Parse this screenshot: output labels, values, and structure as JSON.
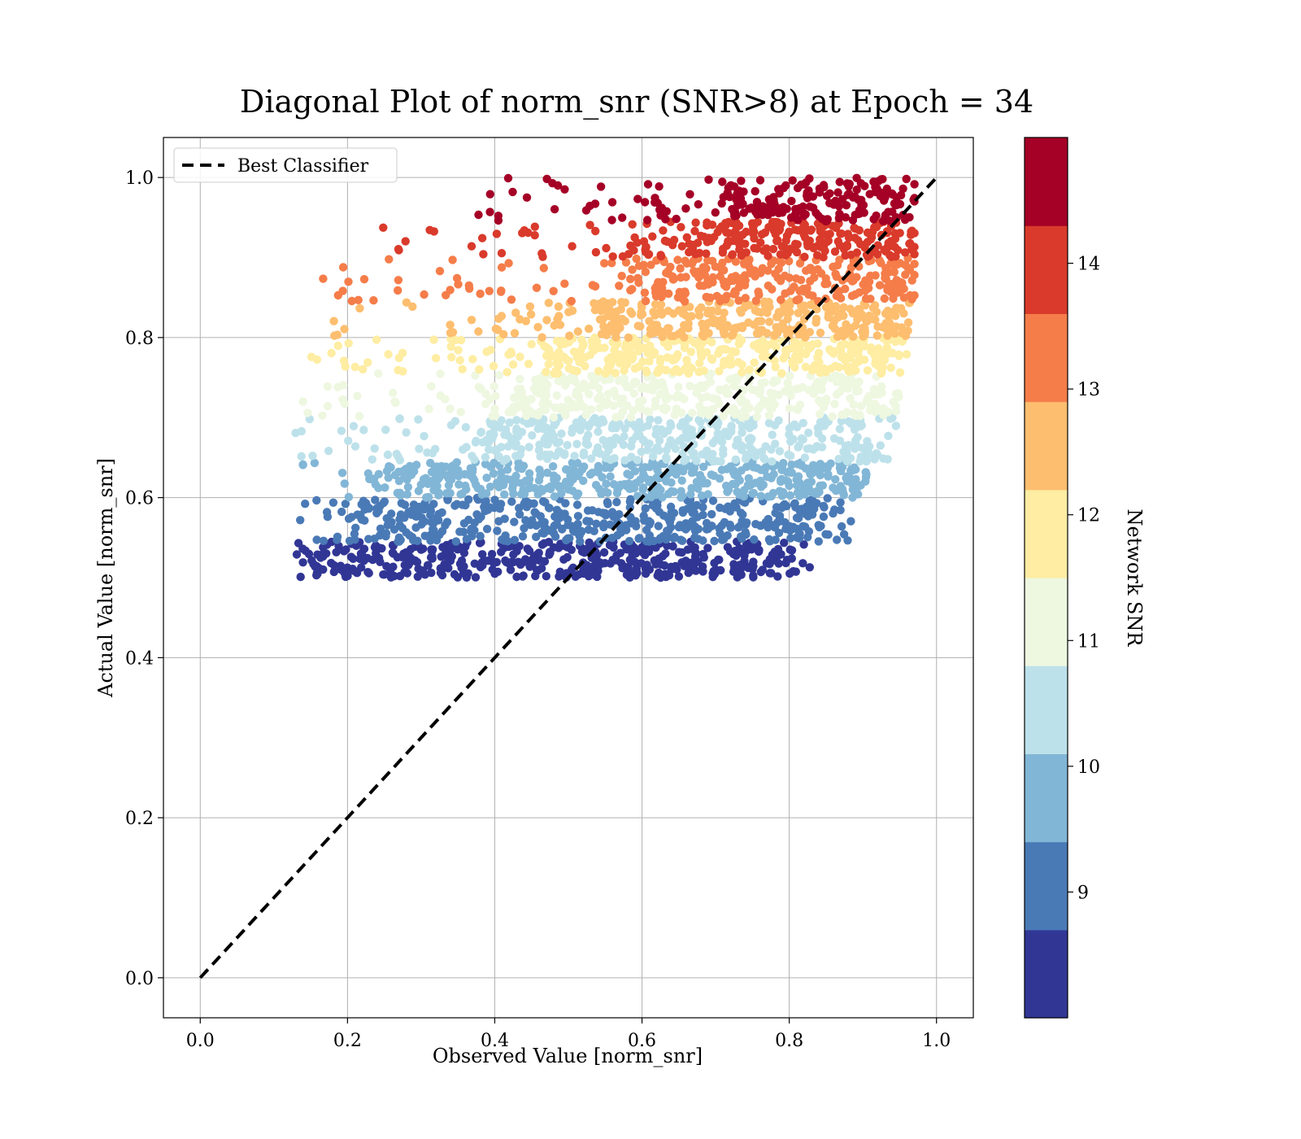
{
  "chart_data": {
    "type": "scatter",
    "title": "Diagonal Plot of norm_snr (SNR>8) at Epoch = 34",
    "xlabel": "Observed Value [norm_snr]",
    "ylabel": "Actual Value [norm_snr]",
    "xlim": [
      -0.05,
      1.05
    ],
    "ylim": [
      -0.05,
      1.05
    ],
    "x_ticks": [
      "0.0",
      "0.2",
      "0.4",
      "0.6",
      "0.8",
      "1.0"
    ],
    "y_ticks": [
      "0.0",
      "0.2",
      "0.4",
      "0.6",
      "0.8",
      "1.0"
    ],
    "x_tick_values": [
      0.0,
      0.2,
      0.4,
      0.6,
      0.8,
      1.0
    ],
    "y_tick_values": [
      0.0,
      0.2,
      0.4,
      0.6,
      0.8,
      1.0
    ],
    "grid": true,
    "legend": {
      "placement": "upper-left",
      "entries": [
        "Best Classifier"
      ]
    },
    "reference_line": {
      "name": "Best Classifier",
      "style": "dashed",
      "color": "#000000",
      "x": [
        0.0,
        1.0
      ],
      "y": [
        0.0,
        1.0
      ]
    },
    "colorbar": {
      "label": "Network SNR",
      "range": [
        8,
        15
      ],
      "ticks": [
        "9",
        "10",
        "11",
        "12",
        "13",
        "14"
      ],
      "tick_values": [
        9,
        10,
        11,
        12,
        13,
        14
      ],
      "bins": [
        {
          "from": 8.0,
          "to": 8.7,
          "color": "#313695"
        },
        {
          "from": 8.7,
          "to": 9.4,
          "color": "#4a7ab6"
        },
        {
          "from": 9.4,
          "to": 10.1,
          "color": "#82b6d6"
        },
        {
          "from": 10.1,
          "to": 10.8,
          "color": "#bde1ea"
        },
        {
          "from": 10.8,
          "to": 11.5,
          "color": "#eef7e0"
        },
        {
          "from": 11.5,
          "to": 12.2,
          "color": "#feeda2"
        },
        {
          "from": 12.2,
          "to": 12.9,
          "color": "#fdbe6f"
        },
        {
          "from": 12.9,
          "to": 13.6,
          "color": "#f57d4a"
        },
        {
          "from": 13.6,
          "to": 14.3,
          "color": "#d93a2b"
        },
        {
          "from": 14.3,
          "to": 15.0,
          "color": "#a50026"
        }
      ]
    },
    "point_bands": [
      {
        "snr_bin": 0,
        "y_range": [
          0.5,
          0.545
        ],
        "x_core": [
          0.15,
          0.8
        ],
        "x_sparse": [
          0.125,
          0.83
        ]
      },
      {
        "snr_bin": 1,
        "y_range": [
          0.545,
          0.6
        ],
        "x_core": [
          0.2,
          0.85
        ],
        "x_sparse": [
          0.13,
          0.89
        ]
      },
      {
        "snr_bin": 2,
        "y_range": [
          0.6,
          0.645
        ],
        "x_core": [
          0.27,
          0.9
        ],
        "x_sparse": [
          0.13,
          0.905
        ]
      },
      {
        "snr_bin": 3,
        "y_range": [
          0.645,
          0.7
        ],
        "x_core": [
          0.38,
          0.92
        ],
        "x_sparse": [
          0.11,
          0.945
        ]
      },
      {
        "snr_bin": 4,
        "y_range": [
          0.7,
          0.755
        ],
        "x_core": [
          0.43,
          0.93
        ],
        "x_sparse": [
          0.12,
          0.95
        ]
      },
      {
        "snr_bin": 5,
        "y_range": [
          0.755,
          0.8
        ],
        "x_core": [
          0.47,
          0.95
        ],
        "x_sparse": [
          0.14,
          0.96
        ]
      },
      {
        "snr_bin": 6,
        "y_range": [
          0.8,
          0.845
        ],
        "x_core": [
          0.55,
          0.96
        ],
        "x_sparse": [
          0.17,
          0.965
        ]
      },
      {
        "snr_bin": 7,
        "y_range": [
          0.845,
          0.9
        ],
        "x_core": [
          0.62,
          0.97
        ],
        "x_sparse": [
          0.16,
          0.97
        ]
      },
      {
        "snr_bin": 8,
        "y_range": [
          0.9,
          0.945
        ],
        "x_core": [
          0.68,
          0.97
        ],
        "x_sparse": [
          0.21,
          0.97
        ]
      },
      {
        "snr_bin": 9,
        "y_range": [
          0.945,
          1.0
        ],
        "x_core": [
          0.72,
          0.97
        ],
        "x_sparse": [
          0.37,
          0.97
        ]
      }
    ]
  }
}
